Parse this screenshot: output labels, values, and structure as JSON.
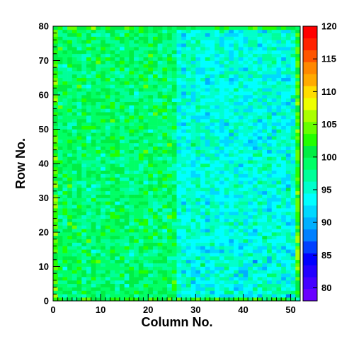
{
  "chart_data": {
    "type": "heatmap",
    "title": "",
    "xlabel": "Column No.",
    "ylabel": "Row No.",
    "x_bins": 52,
    "y_bins": 80,
    "xlim": [
      0,
      52
    ],
    "ylim": [
      0,
      80
    ],
    "x_ticks": [
      "0",
      "10",
      "20",
      "30",
      "40",
      "50"
    ],
    "y_ticks": [
      "0",
      "10",
      "20",
      "30",
      "40",
      "50",
      "60",
      "70",
      "80"
    ],
    "z_range": [
      78,
      120
    ],
    "colorbar_ticks": [
      "80",
      "85",
      "90",
      "95",
      "100",
      "105",
      "110",
      "115",
      "120"
    ],
    "pattern": {
      "description_free_values": true,
      "left_region_mean": 99,
      "right_region_mean": 94.5,
      "transition_column": 26,
      "edge_column_mean": 103,
      "edge_row_mean": 101,
      "spread": 7
    },
    "palette": [
      "#6a00ff",
      "#4400ff",
      "#2200ff",
      "#0000ff",
      "#0040ff",
      "#0080ff",
      "#00b0ff",
      "#00d8ff",
      "#00ffff",
      "#00ffcc",
      "#00ff99",
      "#00ff66",
      "#00ee44",
      "#22ff00",
      "#66ff00",
      "#aaff00",
      "#eeff00",
      "#ffdd00",
      "#ffaa00",
      "#ff8800",
      "#ff5500",
      "#ff2200",
      "#ff0000"
    ]
  }
}
